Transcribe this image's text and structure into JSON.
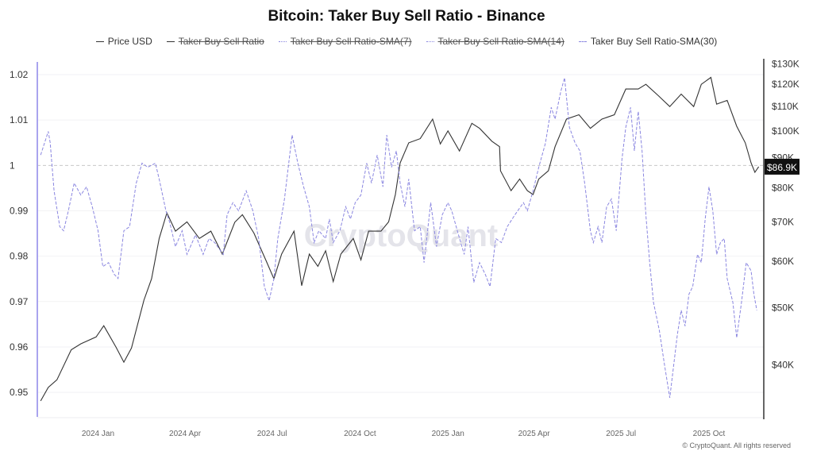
{
  "chart_data": {
    "type": "line",
    "title": "Bitcoin: Taker Buy Sell Ratio - Binance",
    "legend": [
      {
        "label": "Price USD",
        "visible": true,
        "style": "solid",
        "color": "#333333"
      },
      {
        "label": "Taker Buy Sell Ratio",
        "visible": false,
        "style": "solid",
        "color": "#333333"
      },
      {
        "label": "Taker Buy Sell Ratio-SMA(7)",
        "visible": false,
        "style": "dotted",
        "color": "#8a86e0"
      },
      {
        "label": "Taker Buy Sell Ratio-SMA(14)",
        "visible": false,
        "style": "dotted",
        "color": "#8a86e0"
      },
      {
        "label": "Taker Buy Sell Ratio-SMA(30)",
        "visible": true,
        "style": "dashed",
        "color": "#8a86e0"
      }
    ],
    "legend_position": "top",
    "x_range": [
      "2023-11-01",
      "2025-11-24"
    ],
    "x_ticks": [
      {
        "label": "2024 Jan",
        "date": "2024-01-01"
      },
      {
        "label": "2024 Apr",
        "date": "2024-04-01"
      },
      {
        "label": "2024 Jul",
        "date": "2024-07-01"
      },
      {
        "label": "2024 Oct",
        "date": "2024-10-01"
      },
      {
        "label": "2025 Jan",
        "date": "2025-01-01"
      },
      {
        "label": "2025 Apr",
        "date": "2025-04-01"
      },
      {
        "label": "2025 Jul",
        "date": "2025-07-01"
      },
      {
        "label": "2025 Oct",
        "date": "2025-10-01"
      }
    ],
    "y_left": {
      "range": [
        0.9446,
        1.0228
      ],
      "ticks": [
        0.95,
        0.96,
        0.97,
        0.98,
        0.99,
        1,
        1.01,
        1.02
      ],
      "tick_labels": [
        "0.95",
        "0.96",
        "0.97",
        "0.98",
        "0.99",
        "1",
        "1.01",
        "1.02"
      ],
      "reference_line": 1
    },
    "y_right": {
      "scale": "log",
      "range": [
        32600,
        131000
      ],
      "ticks": [
        40000,
        50000,
        60000,
        70000,
        80000,
        90000,
        100000,
        110000,
        120000,
        130000
      ],
      "tick_labels": [
        "$40K",
        "$50K",
        "$60K",
        "$70K",
        "$80K",
        "$90K",
        "$100K",
        "$110K",
        "$120K",
        "$130K"
      ]
    },
    "grid": true,
    "current_price_label": "$86.9K",
    "series": [
      {
        "name": "Price USD",
        "axis": "right",
        "color": "#333333",
        "points": [
          [
            "2023-11-02",
            34700
          ],
          [
            "2023-11-10",
            36600
          ],
          [
            "2023-11-19",
            37700
          ],
          [
            "2023-12-04",
            42400
          ],
          [
            "2023-12-14",
            43400
          ],
          [
            "2023-12-30",
            44600
          ],
          [
            "2024-01-07",
            46600
          ],
          [
            "2024-01-20",
            42800
          ],
          [
            "2024-01-28",
            40400
          ],
          [
            "2024-02-05",
            42700
          ],
          [
            "2024-02-18",
            51500
          ],
          [
            "2024-02-26",
            56000
          ],
          [
            "2024-03-05",
            65600
          ],
          [
            "2024-03-13",
            72500
          ],
          [
            "2024-03-22",
            67500
          ],
          [
            "2024-04-03",
            70000
          ],
          [
            "2024-04-16",
            65600
          ],
          [
            "2024-04-28",
            67500
          ],
          [
            "2024-05-10",
            61700
          ],
          [
            "2024-05-23",
            69900
          ],
          [
            "2024-05-31",
            72000
          ],
          [
            "2024-06-12",
            67000
          ],
          [
            "2024-06-25",
            60000
          ],
          [
            "2024-07-03",
            56000
          ],
          [
            "2024-07-11",
            61700
          ],
          [
            "2024-07-24",
            67500
          ],
          [
            "2024-08-01",
            54500
          ],
          [
            "2024-08-09",
            61700
          ],
          [
            "2024-08-18",
            58800
          ],
          [
            "2024-08-26",
            62500
          ],
          [
            "2024-09-03",
            55400
          ],
          [
            "2024-09-11",
            61700
          ],
          [
            "2024-09-24",
            65600
          ],
          [
            "2024-10-02",
            60300
          ],
          [
            "2024-10-10",
            67500
          ],
          [
            "2024-10-23",
            67500
          ],
          [
            "2024-10-31",
            70000
          ],
          [
            "2024-11-07",
            77900
          ],
          [
            "2024-11-12",
            88200
          ],
          [
            "2024-11-21",
            95400
          ],
          [
            "2024-12-03",
            97000
          ],
          [
            "2024-12-16",
            104700
          ],
          [
            "2024-12-24",
            95000
          ],
          [
            "2025-01-01",
            100000
          ],
          [
            "2025-01-13",
            92400
          ],
          [
            "2025-01-26",
            103000
          ],
          [
            "2025-02-03",
            101000
          ],
          [
            "2025-02-16",
            96000
          ],
          [
            "2025-02-24",
            94000
          ],
          [
            "2025-02-25",
            85500
          ],
          [
            "2025-03-08",
            79100
          ],
          [
            "2025-03-17",
            82800
          ],
          [
            "2025-03-25",
            79100
          ],
          [
            "2025-03-31",
            77900
          ],
          [
            "2025-04-06",
            82800
          ],
          [
            "2025-04-16",
            85500
          ],
          [
            "2025-04-23",
            94000
          ],
          [
            "2025-05-05",
            104700
          ],
          [
            "2025-05-18",
            106500
          ],
          [
            "2025-05-30",
            101000
          ],
          [
            "2025-06-11",
            104700
          ],
          [
            "2025-06-24",
            106500
          ],
          [
            "2025-07-06",
            117800
          ],
          [
            "2025-07-19",
            117800
          ],
          [
            "2025-07-27",
            120000
          ],
          [
            "2025-08-09",
            114800
          ],
          [
            "2025-08-21",
            110000
          ],
          [
            "2025-09-02",
            115500
          ],
          [
            "2025-09-15",
            110000
          ],
          [
            "2025-09-23",
            120000
          ],
          [
            "2025-10-03",
            123300
          ],
          [
            "2025-10-09",
            111000
          ],
          [
            "2025-10-20",
            112700
          ],
          [
            "2025-10-30",
            101800
          ],
          [
            "2025-11-08",
            95400
          ],
          [
            "2025-11-14",
            88200
          ],
          [
            "2025-11-18",
            85000
          ],
          [
            "2025-11-22",
            86900
          ]
        ]
      },
      {
        "name": "Taker Buy Sell Ratio-SMA(30)",
        "axis": "left",
        "color": "#8a86e0",
        "points": [
          [
            "2023-11-02",
            1.0023
          ],
          [
            "2023-11-10",
            1.0075
          ],
          [
            "2023-11-12",
            1.005
          ],
          [
            "2023-11-16",
            0.9944
          ],
          [
            "2023-11-22",
            0.9865
          ],
          [
            "2023-11-26",
            0.9856
          ],
          [
            "2023-12-01",
            0.99
          ],
          [
            "2023-12-07",
            0.9961
          ],
          [
            "2023-12-14",
            0.9935
          ],
          [
            "2023-12-20",
            0.9953
          ],
          [
            "2023-12-26",
            0.9909
          ],
          [
            "2024-01-01",
            0.9856
          ],
          [
            "2024-01-06",
            0.9777
          ],
          [
            "2024-01-12",
            0.9786
          ],
          [
            "2024-01-18",
            0.976
          ],
          [
            "2024-01-22",
            0.9751
          ],
          [
            "2024-01-28",
            0.9856
          ],
          [
            "2024-02-03",
            0.9865
          ],
          [
            "2024-02-10",
            0.9961
          ],
          [
            "2024-02-16",
            1.0005
          ],
          [
            "2024-02-22",
            0.9996
          ],
          [
            "2024-03-01",
            1.0005
          ],
          [
            "2024-03-05",
            0.997
          ],
          [
            "2024-03-12",
            0.99
          ],
          [
            "2024-03-16",
            0.9874
          ],
          [
            "2024-03-22",
            0.9821
          ],
          [
            "2024-03-29",
            0.9856
          ],
          [
            "2024-04-03",
            0.9804
          ],
          [
            "2024-04-12",
            0.9847
          ],
          [
            "2024-04-20",
            0.9804
          ],
          [
            "2024-04-26",
            0.9839
          ],
          [
            "2024-05-02",
            0.983
          ],
          [
            "2024-05-11",
            0.9804
          ],
          [
            "2024-05-15",
            0.9891
          ],
          [
            "2024-05-21",
            0.9918
          ],
          [
            "2024-05-27",
            0.99
          ],
          [
            "2024-06-04",
            0.9944
          ],
          [
            "2024-06-11",
            0.99
          ],
          [
            "2024-06-17",
            0.9839
          ],
          [
            "2024-06-23",
            0.9733
          ],
          [
            "2024-06-28",
            0.9702
          ],
          [
            "2024-07-03",
            0.9751
          ],
          [
            "2024-07-07",
            0.9839
          ],
          [
            "2024-07-14",
            0.9926
          ],
          [
            "2024-07-22",
            1.0067
          ],
          [
            "2024-07-28",
            1.0005
          ],
          [
            "2024-08-03",
            0.9953
          ],
          [
            "2024-08-09",
            0.9909
          ],
          [
            "2024-08-14",
            0.983
          ],
          [
            "2024-08-19",
            0.9856
          ],
          [
            "2024-08-26",
            0.9839
          ],
          [
            "2024-08-30",
            0.9882
          ],
          [
            "2024-09-03",
            0.983
          ],
          [
            "2024-09-10",
            0.9856
          ],
          [
            "2024-09-16",
            0.9909
          ],
          [
            "2024-09-21",
            0.9882
          ],
          [
            "2024-09-26",
            0.9918
          ],
          [
            "2024-10-02",
            0.9935
          ],
          [
            "2024-10-08",
            1.0005
          ],
          [
            "2024-10-13",
            0.9961
          ],
          [
            "2024-10-19",
            1.0023
          ],
          [
            "2024-10-25",
            0.9953
          ],
          [
            "2024-10-29",
            1.0067
          ],
          [
            "2024-11-03",
            0.9996
          ],
          [
            "2024-11-08",
            1.0032
          ],
          [
            "2024-11-12",
            0.9961
          ],
          [
            "2024-11-17",
            0.9909
          ],
          [
            "2024-11-21",
            0.997
          ],
          [
            "2024-11-27",
            0.9856
          ],
          [
            "2024-12-03",
            0.9865
          ],
          [
            "2024-12-07",
            0.9786
          ],
          [
            "2024-12-14",
            0.9918
          ],
          [
            "2024-12-20",
            0.9821
          ],
          [
            "2024-12-26",
            0.9891
          ],
          [
            "2025-01-01",
            0.9918
          ],
          [
            "2025-01-05",
            0.99
          ],
          [
            "2025-01-12",
            0.9847
          ],
          [
            "2025-01-18",
            0.9804
          ],
          [
            "2025-01-22",
            0.9865
          ],
          [
            "2025-01-28",
            0.9742
          ],
          [
            "2025-02-03",
            0.9786
          ],
          [
            "2025-02-09",
            0.976
          ],
          [
            "2025-02-14",
            0.9733
          ],
          [
            "2025-02-20",
            0.9839
          ],
          [
            "2025-02-26",
            0.983
          ],
          [
            "2025-03-04",
            0.9865
          ],
          [
            "2025-03-12",
            0.9891
          ],
          [
            "2025-03-21",
            0.9918
          ],
          [
            "2025-03-25",
            0.99
          ],
          [
            "2025-03-31",
            0.9944
          ],
          [
            "2025-04-06",
            0.9996
          ],
          [
            "2025-04-13",
            1.0049
          ],
          [
            "2025-04-19",
            1.0128
          ],
          [
            "2025-04-23",
            1.0102
          ],
          [
            "2025-04-29",
            1.0163
          ],
          [
            "2025-05-03",
            1.0193
          ],
          [
            "2025-05-08",
            1.0084
          ],
          [
            "2025-05-14",
            1.0049
          ],
          [
            "2025-05-19",
            1.0032
          ],
          [
            "2025-05-24",
            0.9961
          ],
          [
            "2025-05-30",
            0.9856
          ],
          [
            "2025-06-02",
            0.983
          ],
          [
            "2025-06-07",
            0.9865
          ],
          [
            "2025-06-11",
            0.983
          ],
          [
            "2025-06-16",
            0.9909
          ],
          [
            "2025-06-21",
            0.9926
          ],
          [
            "2025-06-26",
            0.9856
          ],
          [
            "2025-07-02",
            1.0014
          ],
          [
            "2025-07-06",
            1.0084
          ],
          [
            "2025-07-11",
            1.0128
          ],
          [
            "2025-07-15",
            1.0032
          ],
          [
            "2025-07-19",
            1.0119
          ],
          [
            "2025-07-23",
            1.0032
          ],
          [
            "2025-07-27",
            0.9891
          ],
          [
            "2025-07-31",
            0.9786
          ],
          [
            "2025-08-04",
            0.9698
          ],
          [
            "2025-08-10",
            0.9637
          ],
          [
            "2025-08-15",
            0.9567
          ],
          [
            "2025-08-21",
            0.9488
          ],
          [
            "2025-08-25",
            0.9558
          ],
          [
            "2025-08-29",
            0.9628
          ],
          [
            "2025-09-02",
            0.9681
          ],
          [
            "2025-09-06",
            0.9646
          ],
          [
            "2025-09-10",
            0.9716
          ],
          [
            "2025-09-14",
            0.9733
          ],
          [
            "2025-09-19",
            0.9804
          ],
          [
            "2025-09-23",
            0.9786
          ],
          [
            "2025-09-27",
            0.9882
          ],
          [
            "2025-10-01",
            0.9953
          ],
          [
            "2025-10-05",
            0.99
          ],
          [
            "2025-10-09",
            0.9804
          ],
          [
            "2025-10-13",
            0.983
          ],
          [
            "2025-10-17",
            0.9839
          ],
          [
            "2025-10-20",
            0.9751
          ],
          [
            "2025-10-26",
            0.9698
          ],
          [
            "2025-10-30",
            0.962
          ],
          [
            "2025-11-04",
            0.9698
          ],
          [
            "2025-11-09",
            0.9786
          ],
          [
            "2025-11-14",
            0.9768
          ],
          [
            "2025-11-17",
            0.9716
          ],
          [
            "2025-11-20",
            0.9681
          ]
        ]
      }
    ]
  },
  "watermark": "CryptoQuant",
  "footer": "© CryptoQuant. All rights reserved"
}
